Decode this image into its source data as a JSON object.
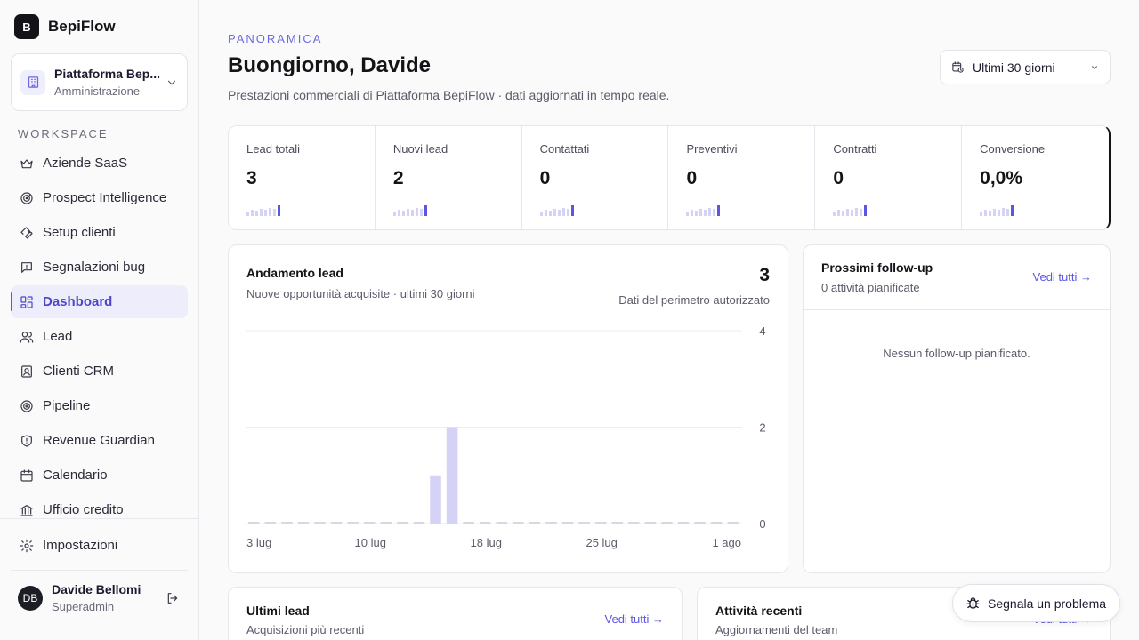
{
  "brand": {
    "logo_letter": "B",
    "name": "BepiFlow"
  },
  "org": {
    "name": "Piattaforma Bep...",
    "role": "Amministrazione"
  },
  "sidebar": {
    "section_label": "WORKSPACE",
    "items": [
      {
        "label": "Aziende SaaS",
        "icon": "crown-icon"
      },
      {
        "label": "Prospect Intelligence",
        "icon": "radar-icon"
      },
      {
        "label": "Setup clienti",
        "icon": "wrench-icon"
      },
      {
        "label": "Segnalazioni bug",
        "icon": "message-alert-icon"
      },
      {
        "label": "Dashboard",
        "icon": "dashboard-icon",
        "active": true
      },
      {
        "label": "Lead",
        "icon": "users-icon"
      },
      {
        "label": "Clienti CRM",
        "icon": "contact-icon"
      },
      {
        "label": "Pipeline",
        "icon": "target-icon"
      },
      {
        "label": "Revenue Guardian",
        "icon": "shield-icon"
      },
      {
        "label": "Calendario",
        "icon": "calendar-icon"
      },
      {
        "label": "Ufficio credito",
        "icon": "bank-icon"
      }
    ],
    "settings_label": "Impostazioni"
  },
  "user": {
    "initials": "DB",
    "name": "Davide Bellomi",
    "role": "Superadmin"
  },
  "header": {
    "eyebrow": "PANORAMICA",
    "title": "Buongiorno, Davide",
    "subtitle": "Prestazioni commerciali di Piattaforma BepiFlow · dati aggiornati in tempo reale.",
    "range_label": "Ultimi 30 giorni"
  },
  "kpis": [
    {
      "label": "Lead totali",
      "value": "3"
    },
    {
      "label": "Nuovi lead",
      "value": "2"
    },
    {
      "label": "Contattati",
      "value": "0"
    },
    {
      "label": "Preventivi",
      "value": "0"
    },
    {
      "label": "Contratti",
      "value": "0"
    },
    {
      "label": "Conversione",
      "value": "0,0%"
    }
  ],
  "chart_card": {
    "title": "Andamento lead",
    "subtitle": "Nuove opportunità acquisite · ultimi 30 giorni",
    "total": "3",
    "scope": "Dati del perimetro autorizzato"
  },
  "chart_data": {
    "type": "bar",
    "x_tick_labels": [
      "3 lug",
      "10 lug",
      "18 lug",
      "25 lug",
      "1 ago"
    ],
    "y_ticks": [
      0,
      2,
      4
    ],
    "ylim": [
      0,
      4
    ],
    "values": [
      0,
      0,
      0,
      0,
      0,
      0,
      0,
      0,
      0,
      0,
      0,
      1,
      2,
      0,
      0,
      0,
      0,
      0,
      0,
      0,
      0,
      0,
      0,
      0,
      0,
      0,
      0,
      0,
      0,
      0
    ],
    "grid": true,
    "bar_color": "#d4d3f5"
  },
  "followup": {
    "title": "Prossimi follow-up",
    "subtitle": "0 attività pianificate",
    "link": "Vedi tutti →",
    "empty": "Nessun follow-up pianificato."
  },
  "latest_leads": {
    "title": "Ultimi lead",
    "subtitle": "Acquisizioni più recenti",
    "link": "Vedi tutti →"
  },
  "activity": {
    "title": "Attività recenti",
    "subtitle": "Aggiornamenti del team",
    "link": "Vedi tutti →"
  },
  "report_button": {
    "label": "Segnala un problema"
  },
  "colors": {
    "accent": "#5b57e0",
    "accent_light": "#d4d3f5",
    "dark": "#141418"
  }
}
